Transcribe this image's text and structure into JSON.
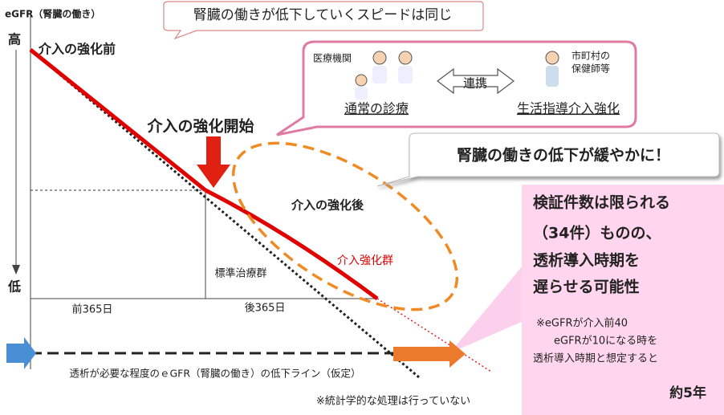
{
  "axis_label": "eGFR（腎臓の働き）",
  "top_callout": "腎臓の働きが低下していくスピードは同じ",
  "high": "高",
  "low": "低",
  "before_label": "介入の強化前",
  "cooperation": {
    "hospital": "医療機関",
    "link": "連携",
    "city": [
      "市町村の",
      "保健師等"
    ],
    "normal_care": "通常の診療",
    "guidance": "生活指導介入強化"
  },
  "start_label": "介入の強化開始",
  "slow_callout": "腎臓の働きの低下が緩やかに！",
  "after_label": "介入の強化後",
  "intervention_group": "介入強化群",
  "standard_group": "標準治療群",
  "before_days": "前365日",
  "after_days": "後365日",
  "dialysis_line": "透析が必要な程度のｅGFR（腎臓の働き）の低下ライン（仮定）",
  "note_stat": "※統計学的な処理は行っていない",
  "result_box": {
    "lines": [
      "検証件数は限られる",
      "（34件）ものの、",
      "透析導入時期を",
      "遅らせる可能性"
    ],
    "note": [
      "※eGFRが介入前40",
      "eGFRが10になる時を",
      "透析導入時期と想定すると"
    ],
    "result": "約5年"
  }
}
